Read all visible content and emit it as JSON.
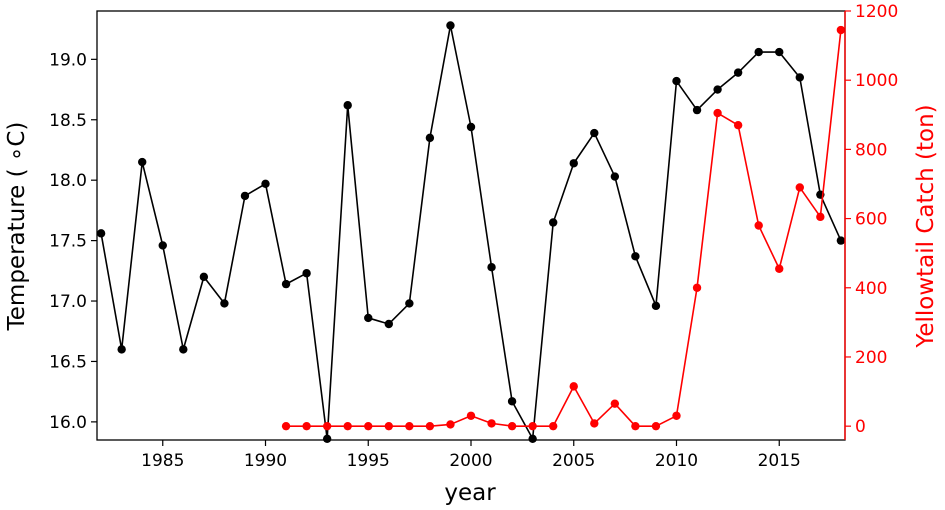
{
  "chart_data": {
    "type": "line",
    "xlabel": "year",
    "ylabel_left": "Temperature ( ∘C)",
    "ylabel_right": "Yellowtail Catch (ton)",
    "xlim": [
      1981.8,
      2018.2
    ],
    "ylim_left": [
      15.85,
      19.4
    ],
    "ylim_right": [
      -40,
      1200
    ],
    "x_ticks": [
      1985,
      1990,
      1995,
      2000,
      2005,
      2010,
      2015
    ],
    "y_left_ticks": [
      16.0,
      16.5,
      17.0,
      17.5,
      18.0,
      18.5,
      19.0
    ],
    "y_left_tick_labels": [
      "16.0",
      "16.5",
      "17.0",
      "17.5",
      "18.0",
      "18.5",
      "19.0"
    ],
    "y_right_ticks": [
      0,
      200,
      400,
      600,
      800,
      1000,
      1200
    ],
    "grid": false,
    "colors": {
      "temperature": "#000000",
      "catch": "#ff0000"
    },
    "series": [
      {
        "axis": "left",
        "color": "#000000",
        "x": [
          1982,
          1983,
          1984,
          1985,
          1986,
          1987,
          1988,
          1989,
          1990,
          1991,
          1992,
          1993,
          1994,
          1995,
          1996,
          1997,
          1998,
          1999,
          2000,
          2001,
          2002,
          2003,
          2004,
          2005,
          2006,
          2007,
          2008,
          2009,
          2010,
          2011,
          2012,
          2013,
          2014,
          2015,
          2016,
          2017,
          2018
        ],
        "values": [
          17.56,
          16.6,
          18.15,
          17.46,
          16.6,
          17.2,
          16.98,
          17.87,
          17.97,
          17.14,
          17.23,
          15.86,
          18.62,
          16.86,
          16.81,
          16.98,
          18.35,
          19.28,
          18.44,
          17.28,
          16.17,
          15.86,
          17.65,
          18.14,
          18.39,
          18.03,
          17.37,
          16.96,
          18.82,
          18.58,
          18.75,
          18.89,
          19.06,
          19.06,
          18.85,
          17.88,
          17.5
        ]
      },
      {
        "axis": "right",
        "color": "#ff0000",
        "x": [
          1991,
          1992,
          1993,
          1994,
          1995,
          1996,
          1997,
          1998,
          1999,
          2000,
          2001,
          2002,
          2003,
          2004,
          2005,
          2006,
          2007,
          2008,
          2009,
          2010,
          2011,
          2012,
          2013,
          2014,
          2015,
          2016,
          2017,
          2018
        ],
        "values": [
          0,
          0,
          0,
          0,
          0,
          0,
          0,
          0,
          5,
          30,
          8,
          0,
          0,
          0,
          115,
          8,
          65,
          0,
          0,
          30,
          400,
          905,
          870,
          580,
          455,
          690,
          605,
          1145
        ]
      }
    ]
  }
}
